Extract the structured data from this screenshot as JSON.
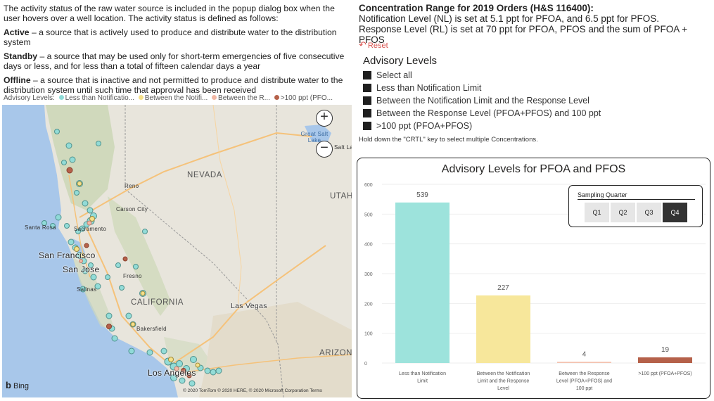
{
  "info": {
    "intro": "The activity status of the raw water source is included in the popup dialog box when the user hovers over a well location.  The activity status is defined as follows:",
    "active_label": "Active",
    "active_text": " – a source that is actively used to produce and distribute water to the distribution system",
    "standby_label": "Standby",
    "standby_text": " – a source that may be used only for short-term emergencies of five consecutive days or less, and for less than a total of fifteen calendar days a year",
    "offline_label": "Offline",
    "offline_text": " – a source that is inactive and not permitted to produce and distribute water to the distribution system until such time that approval has been received"
  },
  "map_legend": {
    "title": "Advisory Levels:",
    "items": [
      {
        "label": "Less than Notificatio...",
        "color": "#8fdcd8"
      },
      {
        "label": "Between the Notifi...",
        "color": "#f5e08a"
      },
      {
        "label": "Between the R...",
        "color": "#f2b8a5"
      },
      {
        "label": ">100 ppt (PFO...",
        "color": "#b5614a"
      }
    ]
  },
  "map": {
    "labels": {
      "nevada": "NEVADA",
      "utah": "UTAH",
      "california": "CALIFORNIA",
      "arizona": "ARIZONA",
      "reno": "Reno",
      "carson_city": "Carson City",
      "santa_rosa": "Santa Rosa",
      "sacramento": "Sacramento",
      "san_francisco": "San Francisco",
      "san_jose": "San Jose",
      "fresno": "Fresno",
      "salinas": "Salinas",
      "las_vegas": "Las Vegas",
      "bakersfield": "Bakersfield",
      "los_angeles": "Los Angeles",
      "great_salt_lake": "Great Salt Lake",
      "salt_lake": "Salt Lak"
    },
    "zoom_in": "+",
    "zoom_out": "−",
    "bing": "Bing",
    "copyright": "© 2020 TomTom © 2020 HERE, © 2020 Microsoft Corporation",
    "terms": "Terms",
    "colors": {
      "water": "#a8c7ea",
      "land": "#e8e5dc",
      "mountain": "#c9d6b4",
      "road": "#f5c27a",
      "border": "#999999"
    }
  },
  "concentration": {
    "title": "Concentration Range for 2019 Orders (H&S 116400):",
    "nl_line": "Notification Level (NL) is set at 5.1 ppt for PFOA, and 6.5 ppt for PFOS.",
    "rl_line": "Response Level (RL) is set at 70 ppt for PFOA, PFOS and the sum of PFOA + PFOS"
  },
  "reset": {
    "icon": "undo-icon",
    "label": "Reset"
  },
  "slicer": {
    "title": "Advisory Levels",
    "items": [
      "Select all",
      "Less than Notification Limit",
      "Between the Notification Limit and the Response Level",
      "Between the Response Level (PFOA+PFOS) and 100 ppt",
      ">100 ppt (PFOA+PFOS)"
    ],
    "note": "Hold down the \"CRTL\" key to select multiple Concentrations."
  },
  "quarter_slicer": {
    "title": "Sampling Quarter",
    "options": [
      "Q1",
      "Q2",
      "Q3",
      "Q4"
    ],
    "selected": "Q4"
  },
  "chart_data": {
    "type": "bar",
    "title": "Advisory Levels for PFOA and PFOS",
    "categories": [
      [
        "Less than Notification",
        "Limit"
      ],
      [
        "Between the Notification",
        "Limit and the Response",
        "Level"
      ],
      [
        "Between the Response",
        "Level (PFOA+PFOS) and",
        "100 ppt"
      ],
      [
        ">100 ppt (PFOA+PFOS)"
      ]
    ],
    "values": [
      539,
      227,
      4,
      19
    ],
    "colors": [
      "#9de3dc",
      "#f7e79b",
      "#f4c2b0",
      "#b5614a"
    ],
    "ylim": [
      0,
      600
    ],
    "yticks": [
      0,
      100,
      200,
      300,
      400,
      500,
      600
    ],
    "xlabel": "",
    "ylabel": "",
    "grid": true
  }
}
